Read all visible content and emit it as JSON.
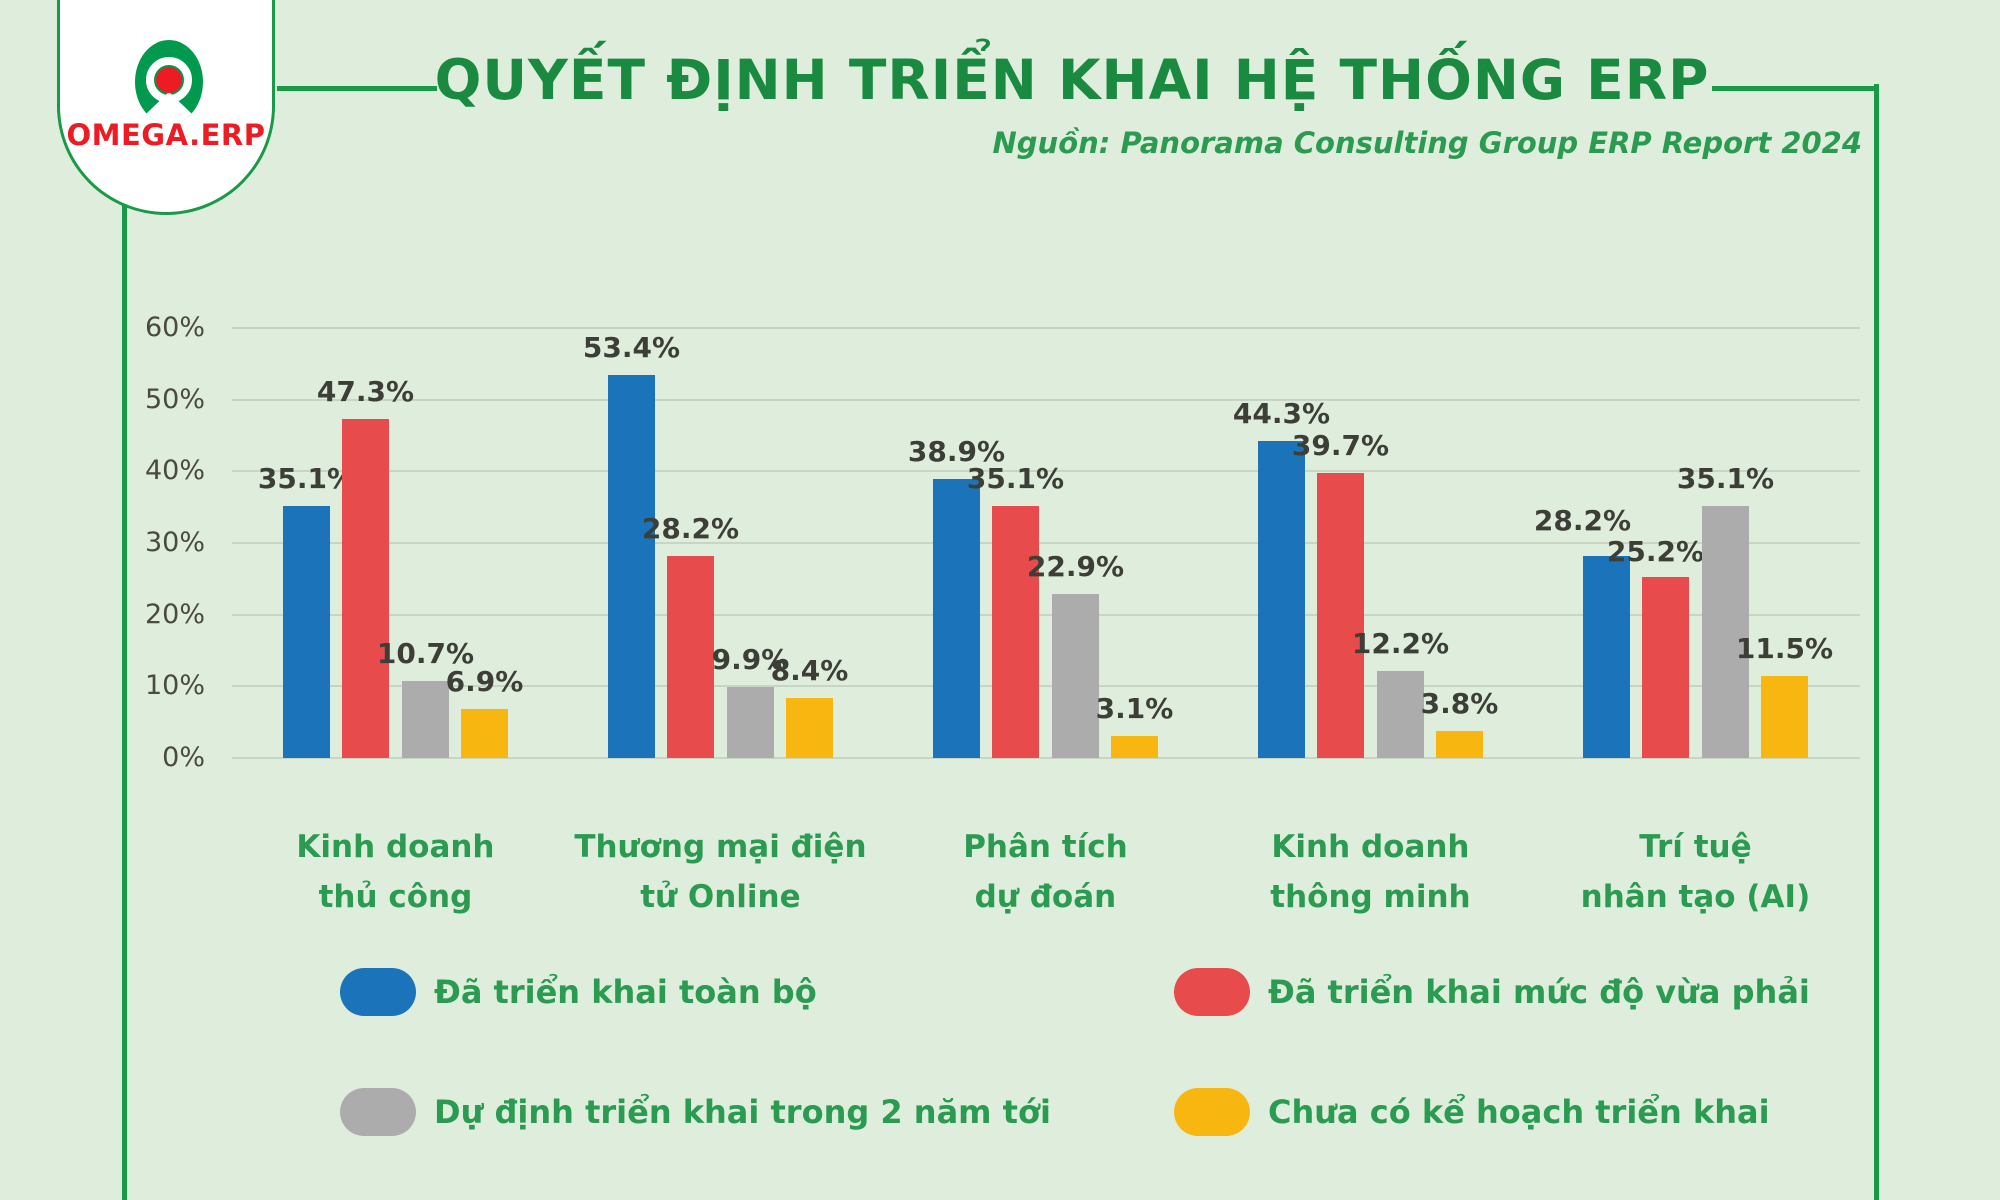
{
  "brand": {
    "logo_text": "OMEGA.ERP"
  },
  "header": {
    "title": "QUYẾT ĐỊNH TRIỂN KHAI HỆ THỐNG ERP",
    "source_note": "Nguồn: Panorama Consulting Group ERP Report 2024"
  },
  "colors": {
    "background": "#DFEEDC",
    "frame_green": "#189A46",
    "title_green": "#1A8A40",
    "label_green": "#2A9B50",
    "axis_text": "#4A4A40",
    "value_text": "#3E3E38",
    "gridline": "#C8D4C4",
    "badge_bg": "#FFFFFF",
    "logo_red": "#ED1C24",
    "logo_green": "#009A4E"
  },
  "chart_data": {
    "type": "bar",
    "title": "QUYẾT ĐỊNH TRIỂN KHAI HỆ THỐNG ERP",
    "source": "Nguồn: Panorama Consulting Group ERP Report 2024",
    "categories": [
      "Kinh doanh thủ công",
      "Thương mại điện tử Online",
      "Phân tích dự đoán",
      "Kinh doanh thông minh",
      "Trí tuệ nhân tạo (AI)"
    ],
    "categories_lines": [
      [
        "Kinh doanh",
        "thủ công"
      ],
      [
        "Thương mại điện",
        "tử Online"
      ],
      [
        "Phân tích",
        "dự đoán"
      ],
      [
        "Kinh doanh",
        "thông minh"
      ],
      [
        "Trí tuệ",
        "nhân tạo (AI)"
      ]
    ],
    "series": [
      {
        "name": "Đã triển khai toàn bộ",
        "color": "#1B74B9",
        "values": [
          35.1,
          53.4,
          38.9,
          44.3,
          28.2
        ]
      },
      {
        "name": "Đã triển khai mức độ vừa phải",
        "color": "#E84B4C",
        "values": [
          47.3,
          28.2,
          35.1,
          39.7,
          25.2
        ]
      },
      {
        "name": "Dự định triển khai trong 2 năm tới",
        "color": "#ACACAC",
        "values": [
          10.7,
          9.9,
          22.9,
          12.2,
          35.1
        ]
      },
      {
        "name": "Chưa có kể hoạch triển khai",
        "color": "#F8B611",
        "values": [
          6.9,
          8.4,
          3.1,
          3.8,
          11.5
        ]
      }
    ],
    "unit": "%",
    "ylim": [
      0,
      60
    ],
    "y_ticks": [
      0,
      10,
      20,
      30,
      40,
      50,
      60
    ],
    "grid": true,
    "value_labels": true,
    "legend_position": "bottom"
  }
}
